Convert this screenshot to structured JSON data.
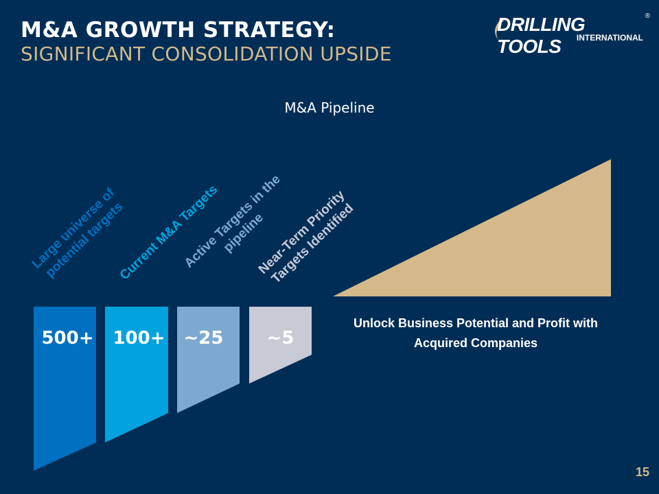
{
  "title_line1": "M&A GROWTH STRATEGY:",
  "title_line2": "SIGNIFICANT CONSOLIDATION UPSIDE",
  "logo": {
    "main": "DRILLING TOOLS",
    "sub": "INTERNATIONAL",
    "reg": "®"
  },
  "subtitle": "M&A Pipeline",
  "stages": [
    {
      "value": "500+",
      "label_lines": [
        "Large universe of",
        "potential targets"
      ],
      "color": "#0070c0"
    },
    {
      "value": "100+",
      "label_lines": [
        "Current M&A Targets"
      ],
      "color": "#00a3de"
    },
    {
      "value": "~25",
      "label_lines": [
        "Active Targets in the",
        "pipeline"
      ],
      "color": "#7da9d0"
    },
    {
      "value": "~5",
      "label_lines": [
        "Near-Term Priority",
        "Targets Identified"
      ],
      "color": "#c8cad6"
    }
  ],
  "growth_text": "Unlock Business Potential and Profit with Acquired Companies",
  "growth_color": "#d4b98a",
  "page_number": "15"
}
